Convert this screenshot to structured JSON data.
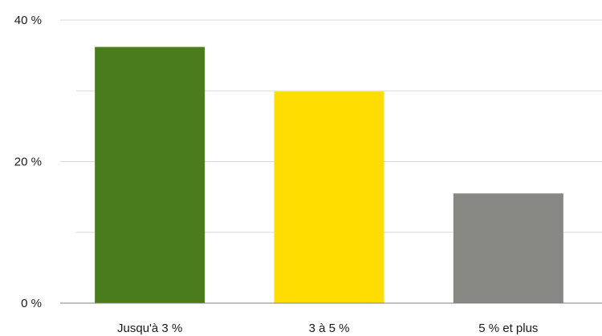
{
  "chart_data": {
    "type": "bar",
    "title": "",
    "xlabel": "",
    "ylabel": "",
    "categories": [
      "Jusqu'à 3 %",
      "3 à 5 %",
      "5 % et plus"
    ],
    "values": [
      36.2,
      29.9,
      15.5
    ],
    "colors": [
      "#4a7c1e",
      "#ffdd00",
      "#878784"
    ],
    "ylim": [
      0,
      40
    ],
    "y_ticks": [
      {
        "value": 0,
        "label": "0 %"
      },
      {
        "value": 20,
        "label": "20 %"
      },
      {
        "value": 40,
        "label": "40 %"
      }
    ],
    "minor_gridlines": [
      10,
      30
    ],
    "grid": true,
    "gridline_color": "#d9d9d9",
    "axis_color": "#7f7f7f",
    "legend": "none"
  }
}
